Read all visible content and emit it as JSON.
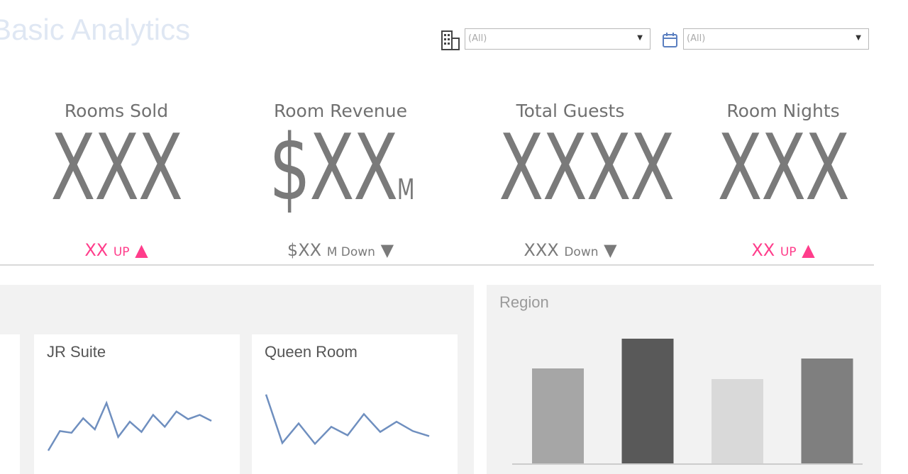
{
  "header": {
    "title": "Basic Analytics"
  },
  "filters": [
    {
      "icon": "building-icon",
      "value": "(All)"
    },
    {
      "icon": "calendar-icon",
      "value": "(All)"
    }
  ],
  "kpis": [
    {
      "label": "Rooms Sold",
      "value": "XXX",
      "unit": "",
      "change_value": "XX",
      "change_text": "UP",
      "direction": "up"
    },
    {
      "label": "Room Revenue",
      "value": "$XX",
      "unit": "M",
      "change_value": "$XX",
      "change_text": "M Down",
      "direction": "down"
    },
    {
      "label": "Total Guests",
      "value": "XXXX",
      "unit": "",
      "change_value": "XXX",
      "change_text": "Down",
      "direction": "down"
    },
    {
      "label": "Room Nights",
      "value": "XXX",
      "unit": "",
      "change_value": "XX",
      "change_text": "UP",
      "direction": "up"
    }
  ],
  "colors": {
    "up": "#ff3d8b",
    "down": "#7a7a7a",
    "sparkline": "#6f8fbf"
  },
  "room_cards": [
    {
      "title": "JR Suite",
      "trend": [
        20,
        43,
        41,
        58,
        45,
        76,
        36,
        54,
        42,
        62,
        48,
        66,
        57,
        62,
        55
      ]
    },
    {
      "title": "Queen Room",
      "trend": [
        86,
        29,
        52,
        28,
        48,
        38,
        63,
        42,
        54,
        43,
        37
      ]
    }
  ],
  "region": {
    "title": "Region",
    "bars": [
      {
        "value": 135,
        "color": "#a6a6a6"
      },
      {
        "value": 177,
        "color": "#595959"
      },
      {
        "value": 120,
        "color": "#d9d9d9"
      },
      {
        "value": 149,
        "color": "#7f7f7f"
      }
    ]
  }
}
